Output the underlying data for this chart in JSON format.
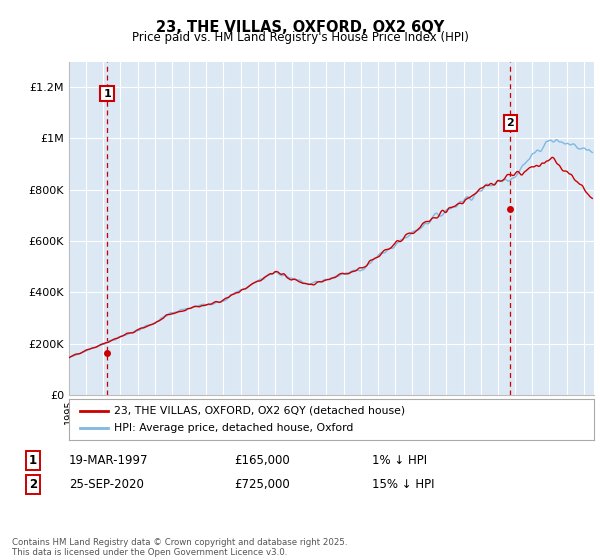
{
  "title": "23, THE VILLAS, OXFORD, OX2 6QY",
  "subtitle": "Price paid vs. HM Land Registry's House Price Index (HPI)",
  "legend_line1": "23, THE VILLAS, OXFORD, OX2 6QY (detached house)",
  "legend_line2": "HPI: Average price, detached house, Oxford",
  "annotation1_date": "19-MAR-1997",
  "annotation1_price": "£165,000",
  "annotation1_note": "1% ↓ HPI",
  "annotation2_date": "25-SEP-2020",
  "annotation2_price": "£725,000",
  "annotation2_note": "15% ↓ HPI",
  "footer": "Contains HM Land Registry data © Crown copyright and database right 2025.\nThis data is licensed under the Open Government Licence v3.0.",
  "bg_color": "#dce9f5",
  "hpi_color": "#7fb8e0",
  "price_color": "#cc0000",
  "annotation_box_color": "#cc0000",
  "grid_color": "#ffffff",
  "ylim": [
    0,
    1300000
  ],
  "yticks": [
    0,
    200000,
    400000,
    600000,
    800000,
    1000000,
    1200000
  ],
  "ytick_labels": [
    "£0",
    "£200K",
    "£400K",
    "£600K",
    "£800K",
    "£1M",
    "£1.2M"
  ],
  "sale1_year": 1997.22,
  "sale1_price": 165000,
  "sale2_year": 2020.73,
  "sale2_price": 725000
}
